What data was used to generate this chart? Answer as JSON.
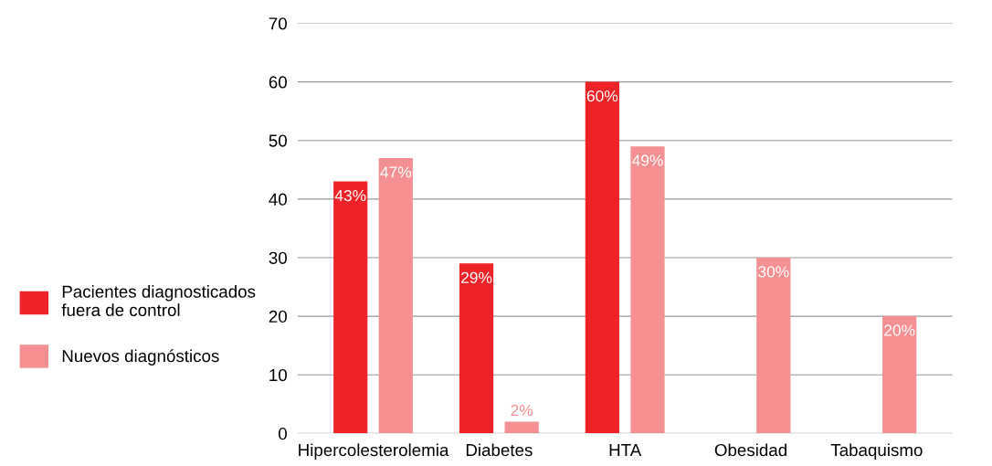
{
  "chart_data": {
    "type": "bar",
    "categories": [
      "Hipercolesterolemia",
      "Diabetes",
      "HTA",
      "Obesidad",
      "Tabaquismo"
    ],
    "series": [
      {
        "name": "Pacientes diagnosticados\nfuera de control",
        "color": "#ee2328",
        "values": [
          43,
          29,
          60,
          null,
          null
        ],
        "value_labels": [
          "43%",
          "29%",
          "60%",
          null,
          null
        ]
      },
      {
        "name": "Nuevos diagnósticos",
        "color": "#f49091",
        "values": [
          47,
          2,
          49,
          30,
          20
        ],
        "value_labels": [
          "47%",
          "2%",
          "49%",
          "30%",
          "20%"
        ]
      }
    ],
    "ylim": [
      0,
      70
    ],
    "yticks": [
      0,
      10,
      20,
      30,
      40,
      50,
      60,
      70
    ],
    "grid": "y",
    "legend": "left"
  }
}
